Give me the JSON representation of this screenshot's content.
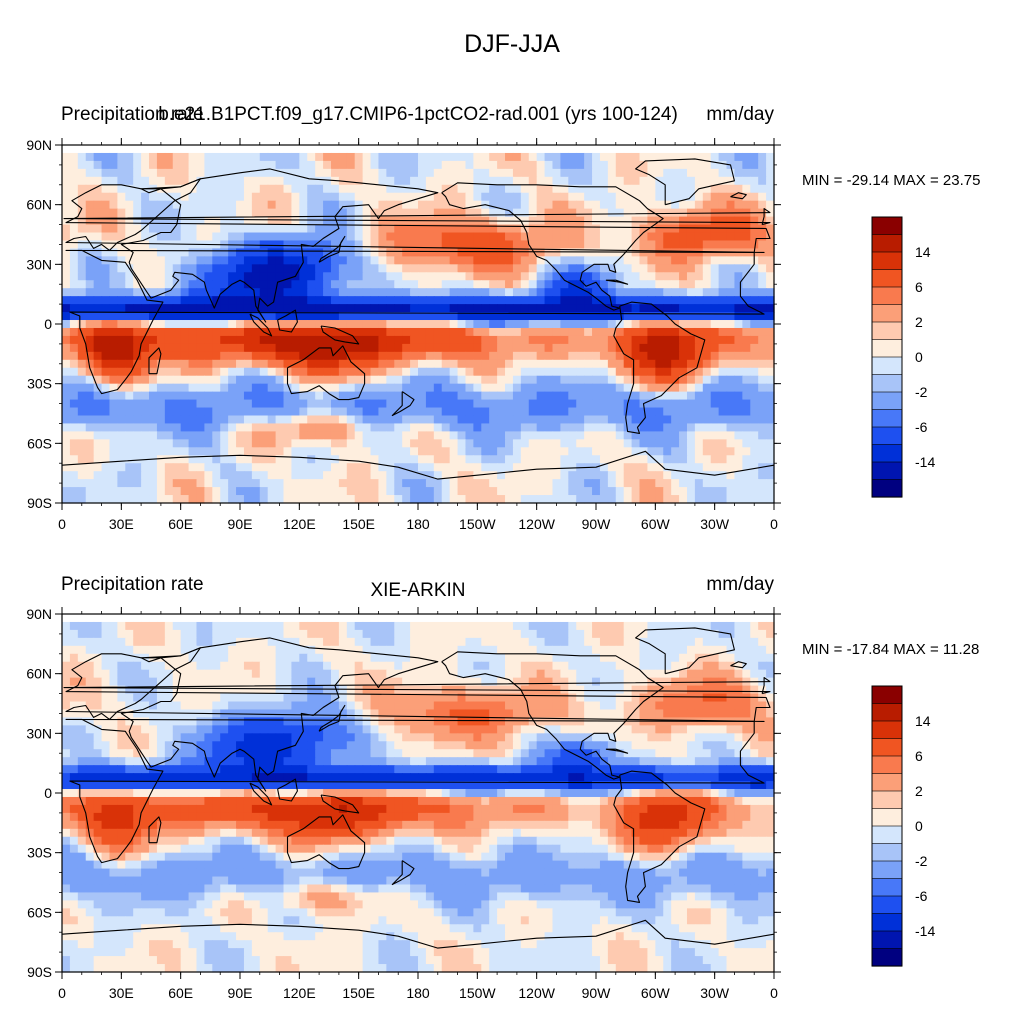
{
  "title": "DJF-JJA",
  "colors": {
    "levels": [
      "#000080",
      "#0015b0",
      "#0030d8",
      "#1e50f0",
      "#4878f8",
      "#7aa2f8",
      "#a8c4f8",
      "#d4e6fc",
      "#feeede",
      "#fecab0",
      "#fb9f78",
      "#f97a4e",
      "#f05522",
      "#d93208",
      "#b81c00",
      "#8a0000"
    ],
    "coast": "#000000",
    "frame": "#000000"
  },
  "chart_data": [
    {
      "type": "heatmap",
      "left_label": "Precipitation rate",
      "center_label": "b.e21.B1PCT.f09_g17.CMIP6-1pctCO2-rad.001 (yrs 100-124)",
      "right_label": "mm/day",
      "min_max_label": "MIN = -29.14 MAX =  23.75",
      "min": -29.14,
      "max": 23.75,
      "x_ticks": [
        "0",
        "30E",
        "60E",
        "90E",
        "120E",
        "150E",
        "180",
        "150W",
        "120W",
        "90W",
        "60W",
        "30W",
        "0"
      ],
      "y_ticks": [
        "90N",
        "60N",
        "30N",
        "0",
        "30S",
        "60S",
        "90S"
      ],
      "xlim": [
        0,
        360
      ],
      "ylim": [
        -90,
        90
      ],
      "colorbar_labels": [
        "14",
        "6",
        "2",
        "0",
        "-2",
        "-6",
        "-14"
      ],
      "variant": 0
    },
    {
      "type": "heatmap",
      "left_label": "Precipitation rate",
      "center_label": "XIE-ARKIN",
      "right_label": "mm/day",
      "min_max_label": "MIN = -17.84 MAX =  11.28",
      "min": -17.84,
      "max": 11.28,
      "x_ticks": [
        "0",
        "30E",
        "60E",
        "90E",
        "120E",
        "150E",
        "180",
        "150W",
        "120W",
        "90W",
        "60W",
        "30W",
        "0"
      ],
      "y_ticks": [
        "90N",
        "60N",
        "30N",
        "0",
        "30S",
        "60S",
        "90S"
      ],
      "xlim": [
        0,
        360
      ],
      "ylim": [
        -90,
        90
      ],
      "colorbar_labels": [
        "14",
        "6",
        "2",
        "0",
        "-2",
        "-6",
        "-14"
      ],
      "variant": 1
    }
  ]
}
